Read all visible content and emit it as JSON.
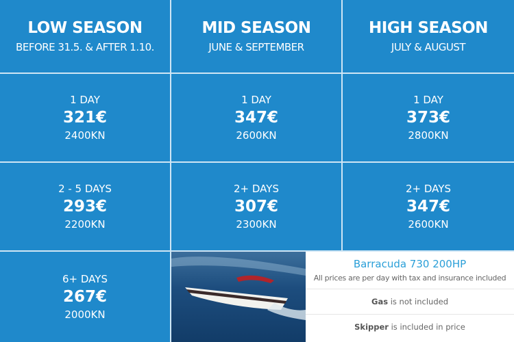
{
  "seasons": [
    {
      "title": "LOW SEASON",
      "dates": "BEFORE 31.5. & AFTER 1.10.",
      "rates": [
        {
          "label": "1 DAY",
          "eur": "321€",
          "kn": "2400KN"
        },
        {
          "label": "2 - 5 DAYS",
          "eur": "293€",
          "kn": "2200KN"
        },
        {
          "label": "6+ DAYS",
          "eur": "267€",
          "kn": "2000KN"
        }
      ]
    },
    {
      "title": "MID SEASON",
      "dates": "JUNE & SEPTEMBER",
      "rates": [
        {
          "label": "1 DAY",
          "eur": "347€",
          "kn": "2600KN"
        },
        {
          "label": "2+ DAYS",
          "eur": "307€",
          "kn": "2300KN"
        }
      ]
    },
    {
      "title": "HIGH SEASON",
      "dates": "JULY & AUGUST",
      "rates": [
        {
          "label": "1 DAY",
          "eur": "373€",
          "kn": "2800KN"
        },
        {
          "label": "2+ DAYS",
          "eur": "347€",
          "kn": "2600KN"
        }
      ]
    }
  ],
  "info": {
    "boat": "Barracuda 730 200HP",
    "note": "All prices are per day with tax and insurance included",
    "gas_bold": "Gas",
    "gas_rest": " is not included",
    "skipper_bold": "Skipper",
    "skipper_rest": " is included in price"
  },
  "colors": {
    "cell": "#1f89cb",
    "title": "#2a9fd8"
  }
}
